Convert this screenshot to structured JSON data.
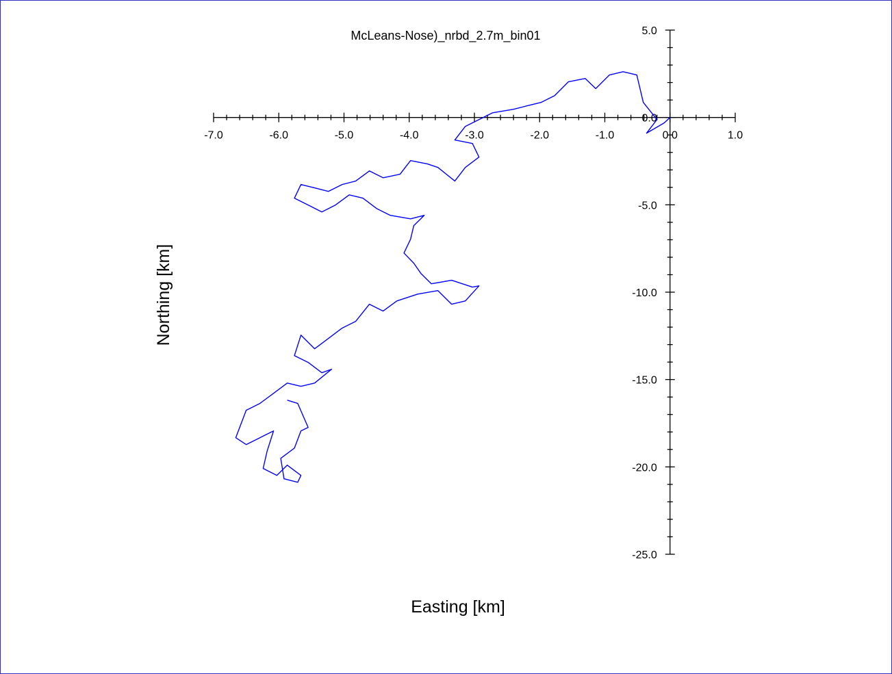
{
  "chart_data": {
    "type": "line",
    "title": "McLeans-Nose)_nrbd_2.7m_bin01",
    "xlabel": "Easting [km]",
    "ylabel": "Northing [km]",
    "x": [
      0,
      -0.09,
      -0.36,
      -0.2,
      -0.41,
      -0.51,
      -0.72,
      -0.93,
      -1.14,
      -1.3,
      -1.56,
      -1.77,
      -1.98,
      -2.19,
      -2.4,
      -2.72,
      -2.93,
      -3.14,
      -3.3,
      -3.03,
      -2.93,
      -3.14,
      -3.3,
      -3.56,
      -3.72,
      -3.98,
      -4.14,
      -4.4,
      -4.61,
      -4.82,
      -5.03,
      -5.24,
      -5.45,
      -5.66,
      -5.76,
      -5.55,
      -5.34,
      -5.13,
      -4.92,
      -4.71,
      -4.5,
      -4.29,
      -3.98,
      -3.77,
      -3.93,
      -3.98,
      -4.08,
      -3.93,
      -3.82,
      -3.66,
      -3.35,
      -3.03,
      -2.93,
      -3.14,
      -3.35,
      -3.56,
      -3.87,
      -4.19,
      -4.4,
      -4.61,
      -4.82,
      -5.03,
      -5.24,
      -5.45,
      -5.66,
      -5.76,
      -5.55,
      -5.34,
      -5.19,
      -5.45,
      -5.66,
      -5.87,
      -6.08,
      -6.29,
      -6.5,
      -6.6,
      -6.66,
      -6.5,
      -6.29,
      -6.08,
      -6.18,
      -6.24,
      -6.03,
      -5.87,
      -5.66,
      -5.71,
      -5.92,
      -5.97,
      -5.76,
      -5.66,
      -5.55,
      -5.71,
      -5.87
    ],
    "series": [
      {
        "color": "#0000ff",
        "values": [
          0,
          -0.31,
          -0.9,
          -0.12,
          0.86,
          2.43,
          2.62,
          2.43,
          1.65,
          2.23,
          2.04,
          1.25,
          0.86,
          0.67,
          0.47,
          0.27,
          -0.12,
          -0.51,
          -1.29,
          -1.49,
          -2.27,
          -2.86,
          -3.64,
          -2.86,
          -2.66,
          -2.47,
          -3.25,
          -3.45,
          -3.06,
          -3.64,
          -3.84,
          -4.23,
          -4.03,
          -3.84,
          -4.62,
          -5.01,
          -5.41,
          -5.01,
          -4.43,
          -4.62,
          -5.21,
          -5.6,
          -5.8,
          -5.6,
          -6.19,
          -6.97,
          -7.76,
          -8.34,
          -8.93,
          -9.52,
          -9.32,
          -9.71,
          -9.64,
          -10.5,
          -10.69,
          -9.91,
          -10.11,
          -10.5,
          -11.08,
          -10.69,
          -11.67,
          -12.06,
          -12.65,
          -13.24,
          -12.46,
          -13.63,
          -14.02,
          -14.61,
          -14.41,
          -15.2,
          -15.39,
          -15.2,
          -15.79,
          -16.37,
          -16.76,
          -17.74,
          -18.33,
          -18.72,
          -18.33,
          -17.94,
          -19.11,
          -20.09,
          -20.49,
          -19.9,
          -20.49,
          -20.88,
          -20.68,
          -19.51,
          -18.92,
          -17.94,
          -17.74,
          -16.37,
          -16.18
        ]
      }
    ],
    "xlim": [
      -7,
      1
    ],
    "ylim": [
      -25,
      5
    ],
    "xticks": [
      {
        "value": -7,
        "label": "-7.0"
      },
      {
        "value": -6,
        "label": "-6.0"
      },
      {
        "value": -5,
        "label": "-5.0"
      },
      {
        "value": -4,
        "label": "-4.0"
      },
      {
        "value": -3,
        "label": "-3.0"
      },
      {
        "value": -2,
        "label": "-2.0"
      },
      {
        "value": -1,
        "label": "-1.0"
      },
      {
        "value": 0,
        "label": "0.0"
      },
      {
        "value": 1,
        "label": "1.0"
      }
    ],
    "yticks": [
      {
        "value": 5,
        "label": "5.0"
      },
      {
        "value": 0,
        "label": "0.0"
      },
      {
        "value": -5,
        "label": "-5.0"
      },
      {
        "value": -10,
        "label": "-10.0"
      },
      {
        "value": -15,
        "label": "-15.0"
      },
      {
        "value": -20,
        "label": "-20.0"
      },
      {
        "value": -25,
        "label": "-25.0"
      }
    ]
  }
}
